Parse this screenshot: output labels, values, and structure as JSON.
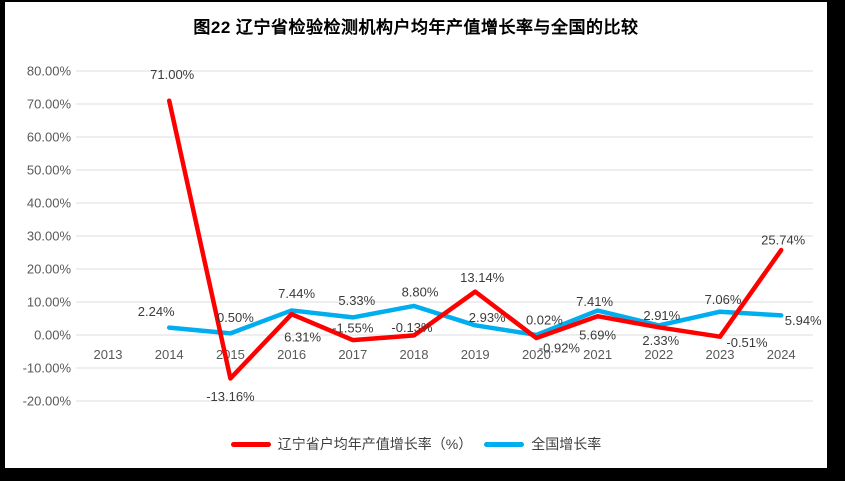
{
  "chart_data": {
    "type": "line",
    "title": "图22  辽宁省检验检测机构户均年产值增长率与全国的比较",
    "x": [
      "2013",
      "2014",
      "2015",
      "2016",
      "2017",
      "2018",
      "2019",
      "2020",
      "2021",
      "2022",
      "2023",
      "2024"
    ],
    "xlabel": "",
    "ylabel": "",
    "ylim": [
      -20,
      80
    ],
    "grid": true,
    "legend_position": "bottom",
    "gridline_color": "#DCDCDC",
    "axis_text_color": "#595959",
    "data_label_color": "#3B3B3B",
    "yticks": [
      {
        "value": 80,
        "label": "80.00%"
      },
      {
        "value": 70,
        "label": "70.00%"
      },
      {
        "value": 60,
        "label": "60.00%"
      },
      {
        "value": 50,
        "label": "50.00%"
      },
      {
        "value": 40,
        "label": "40.00%"
      },
      {
        "value": 30,
        "label": "30.00%"
      },
      {
        "value": 20,
        "label": "20.00%"
      },
      {
        "value": 10,
        "label": "10.00%"
      },
      {
        "value": 0,
        "label": "0.00%"
      },
      {
        "value": -10,
        "label": "-10.00%"
      },
      {
        "value": -20,
        "label": "-20.00%"
      }
    ],
    "series": [
      {
        "name": "辽宁省户均年产值增长率（%）",
        "color": "#FF0000",
        "values": [
          null,
          71.0,
          -13.16,
          6.31,
          -1.55,
          -0.13,
          13.14,
          -0.92,
          5.69,
          2.33,
          -0.51,
          25.74
        ],
        "point_labels": [
          null,
          "71.00%",
          "-13.16%",
          "6.31%",
          "-1.55%",
          "-0.13%",
          "13.14%",
          "-0.92%",
          "5.69%",
          "2.33%",
          "-0.51%",
          "25.74%"
        ],
        "label_offsets": [
          null,
          [
            3,
            -26
          ],
          [
            0,
            18
          ],
          [
            11,
            23
          ],
          [
            0,
            -12
          ],
          [
            -2,
            -8
          ],
          [
            7,
            -14
          ],
          [
            23,
            10
          ],
          [
            0,
            19
          ],
          [
            2,
            13
          ],
          [
            27,
            6
          ],
          [
            2,
            -10
          ]
        ]
      },
      {
        "name": "全国增长率",
        "color": "#00AEEF",
        "values": [
          null,
          2.24,
          0.5,
          7.44,
          5.33,
          8.8,
          2.93,
          0.02,
          7.41,
          2.91,
          7.06,
          5.94
        ],
        "point_labels": [
          null,
          "2.24%",
          "0.50%",
          "7.44%",
          "5.33%",
          "8.80%",
          "2.93%",
          "0.02%",
          "7.41%",
          "2.91%",
          "7.06%",
          "5.94%"
        ],
        "label_offsets": [
          null,
          [
            -13,
            -16
          ],
          [
            5,
            -16
          ],
          [
            5,
            -17
          ],
          [
            4,
            -17
          ],
          [
            6,
            -14
          ],
          [
            12,
            -8
          ],
          [
            8,
            -15
          ],
          [
            -3,
            -9
          ],
          [
            3,
            -10
          ],
          [
            3,
            -12
          ],
          [
            22,
            5
          ]
        ]
      }
    ]
  }
}
